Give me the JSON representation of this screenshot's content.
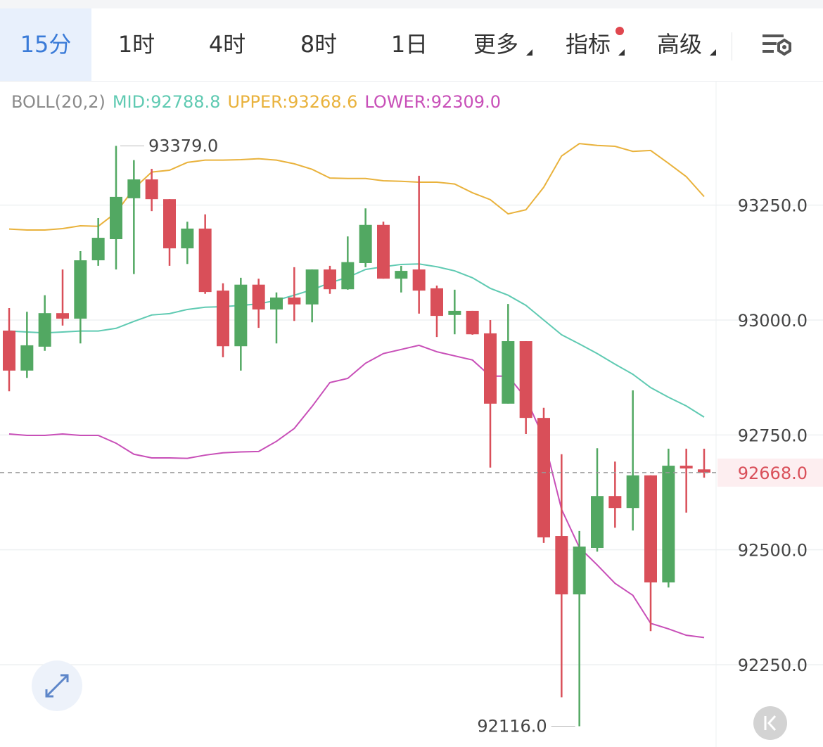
{
  "toolbar": {
    "tabs": [
      {
        "label": "15分"
      },
      {
        "label": "1时"
      },
      {
        "label": "4时"
      },
      {
        "label": "8时"
      },
      {
        "label": "1日"
      },
      {
        "label": "更多"
      },
      {
        "label": "指标"
      },
      {
        "label": "高级"
      }
    ],
    "active": 0
  },
  "chart_data": {
    "type": "candlestick",
    "indicator": "BOLL(20,2)",
    "open": [
      92977,
      92890,
      92942,
      93015,
      93003,
      93130,
      93176,
      93265,
      93306,
      93263,
      93156,
      93199,
      93064,
      92943,
      93077,
      93023,
      93049,
      93034,
      93110,
      93067,
      93124,
      93207,
      93090,
      93110,
      93069,
      93011,
      93020,
      92971,
      92818,
      92954,
      92787,
      92530,
      92403,
      92504,
      92617,
      92591,
      92662,
      92429,
      92683,
      92675
    ],
    "high": [
      93026,
      93018,
      93054,
      93110,
      93150,
      93222,
      93379,
      93348,
      93329,
      93263,
      93214,
      93230,
      93080,
      93092,
      93090,
      93060,
      93115,
      93110,
      93118,
      93182,
      93243,
      93214,
      93118,
      93314,
      93075,
      93066,
      93020,
      93000,
      93035,
      92954,
      92809,
      92708,
      92541,
      92721,
      92692,
      92847,
      92662,
      92720,
      92720,
      92720
    ],
    "low": [
      92845,
      92874,
      92933,
      92988,
      92949,
      93118,
      93110,
      93100,
      93237,
      93118,
      93122,
      93057,
      92919,
      92890,
      92983,
      92949,
      92998,
      92995,
      93057,
      93066,
      93115,
      93090,
      93060,
      93014,
      92963,
      92969,
      92968,
      92679,
      92818,
      92752,
      92515,
      92179,
      92116,
      92496,
      92548,
      92542,
      92323,
      92418,
      92581,
      92657
    ],
    "close": [
      92890,
      92945,
      93015,
      93003,
      93130,
      93179,
      93268,
      93306,
      93263,
      93156,
      93199,
      93061,
      92943,
      93077,
      93023,
      93049,
      93034,
      93110,
      93067,
      93126,
      93207,
      93090,
      93107,
      93064,
      93009,
      93020,
      92969,
      92818,
      92954,
      92787,
      92527,
      92403,
      92507,
      92617,
      92591,
      92662,
      92429,
      92683,
      92677,
      92668
    ],
    "up_color": "#52a862",
    "down_color": "#d94f59",
    "series": [
      {
        "name": "MID",
        "legend": "MID:92788.8",
        "color": "#5fcab2",
        "values": [
          92976,
          92974,
          92972,
          92974,
          92976,
          92976,
          92982,
          92997,
          93011,
          93014,
          93023,
          93028,
          93029,
          93032,
          93035,
          93043,
          93054,
          93066,
          93081,
          93093,
          93110,
          93116,
          93121,
          93122,
          93116,
          93107,
          93092,
          93069,
          93054,
          93032,
          93000,
          92968,
          92948,
          92927,
          92904,
          92882,
          92853,
          92832,
          92813,
          92788.8
        ]
      },
      {
        "name": "UPPER",
        "legend": "UPPER:93268.6",
        "color": "#e9b23c",
        "values": [
          93198,
          93196,
          93196,
          93199,
          93205,
          93204,
          93234,
          93286,
          93322,
          93326,
          93343,
          93348,
          93348,
          93349,
          93351,
          93348,
          93340,
          93328,
          93309,
          93308,
          93308,
          93303,
          93302,
          93300,
          93300,
          93296,
          93277,
          93262,
          93231,
          93240,
          93289,
          93357,
          93384,
          93380,
          93378,
          93367,
          93369,
          93341,
          93312,
          93268.6
        ]
      },
      {
        "name": "LOWER",
        "legend": "LOWER:92309.0",
        "color": "#c84fb8",
        "values": [
          92752,
          92749,
          92749,
          92752,
          92749,
          92749,
          92732,
          92708,
          92700,
          92700,
          92699,
          92706,
          92711,
          92713,
          92714,
          92736,
          92764,
          92812,
          92864,
          92873,
          92906,
          92927,
          92936,
          92945,
          92931,
          92922,
          92913,
          92878,
          92878,
          92830,
          92743,
          92588,
          92505,
          92467,
          92427,
          92401,
          92340,
          92328,
          92314,
          92309
        ]
      }
    ],
    "ylim": [
      92090,
      93450
    ],
    "yticks": [
      {
        "value": 92250,
        "label": "92250.0"
      },
      {
        "value": 92500,
        "label": "92500.0"
      },
      {
        "value": 92750,
        "label": "92750.0"
      },
      {
        "value": 93000,
        "label": "93000.0"
      },
      {
        "value": 93250,
        "label": "93250.0"
      }
    ],
    "grid": true,
    "last_price": {
      "value": 92668,
      "label": "92668.0"
    },
    "max_label": {
      "value": 93379,
      "label": "93379.0"
    },
    "min_label": {
      "value": 92116,
      "label": "92116.0"
    }
  }
}
